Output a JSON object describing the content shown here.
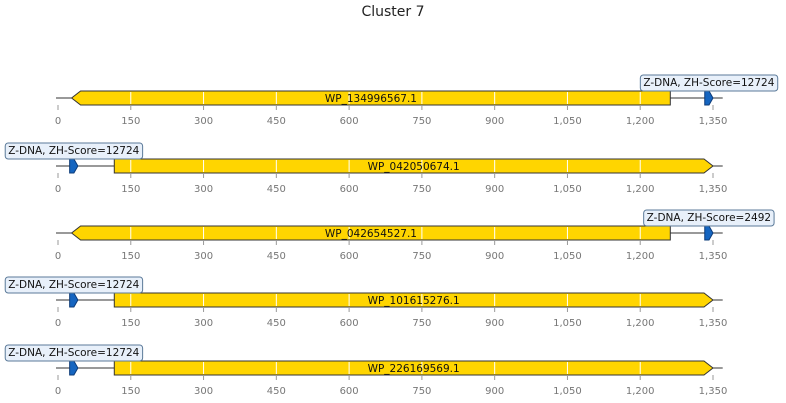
{
  "title": "Cluster 7",
  "colors": {
    "gene_fill": "#FFD500",
    "gene_stroke": "#333333",
    "zdna_fill": "#1565C0",
    "label_box_fill": "#E8F0FA",
    "label_box_stroke": "#5B7A99",
    "axis": "#333333",
    "gridline": "#ffffff"
  },
  "axis": {
    "min": 0,
    "max": 1350,
    "ticks": [
      0,
      150,
      300,
      450,
      600,
      750,
      900,
      1050,
      1200,
      1350
    ],
    "tick_labels": [
      "0",
      "150",
      "300",
      "450",
      "600",
      "750",
      "900",
      "1,050",
      "1,200",
      "1,350"
    ]
  },
  "tracks": [
    {
      "gene": {
        "name": "WP_134996567.1",
        "start": 28,
        "end": 1262,
        "strand": "-"
      },
      "zdna": {
        "start": 1333,
        "end": 1350,
        "strand": "+"
      },
      "label": "Z-DNA, ZH-Score=12724",
      "line_end": 1370
    },
    {
      "gene": {
        "name": "WP_042050674.1",
        "start": 116,
        "end": 1350,
        "strand": "+"
      },
      "zdna": {
        "start": 24,
        "end": 41,
        "strand": "+"
      },
      "label": "Z-DNA, ZH-Score=12724",
      "line_end": 1370
    },
    {
      "gene": {
        "name": "WP_042654527.1",
        "start": 28,
        "end": 1262,
        "strand": "-"
      },
      "zdna": {
        "start": 1333,
        "end": 1350,
        "strand": "+"
      },
      "label": "Z-DNA, ZH-Score=2492",
      "line_end": 1370
    },
    {
      "gene": {
        "name": "WP_101615276.1",
        "start": 116,
        "end": 1350,
        "strand": "+"
      },
      "zdna": {
        "start": 24,
        "end": 41,
        "strand": "+"
      },
      "label": "Z-DNA, ZH-Score=12724",
      "line_end": 1370
    },
    {
      "gene": {
        "name": "WP_226169569.1",
        "start": 116,
        "end": 1350,
        "strand": "+"
      },
      "zdna": {
        "start": 24,
        "end": 41,
        "strand": "+"
      },
      "label": "Z-DNA, ZH-Score=12724",
      "line_end": 1370
    }
  ]
}
